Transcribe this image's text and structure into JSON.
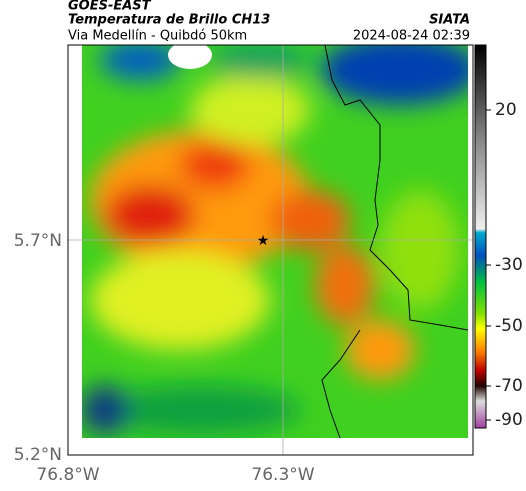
{
  "header": {
    "satellite": "GOES-EAST",
    "product": "Temperatura de Brillo CH13",
    "source": "SIATA",
    "region": "Via Medellín - Quibdó 50km",
    "datetime": "2024-08-24 02:39"
  },
  "map": {
    "y_ticks": [
      "5.7°N",
      "5.2°N"
    ],
    "x_ticks": [
      "76.8°W",
      "76.3°W"
    ]
  },
  "colorbar": {
    "ticks": [
      20,
      -30,
      -50,
      -70,
      -90
    ]
  }
}
